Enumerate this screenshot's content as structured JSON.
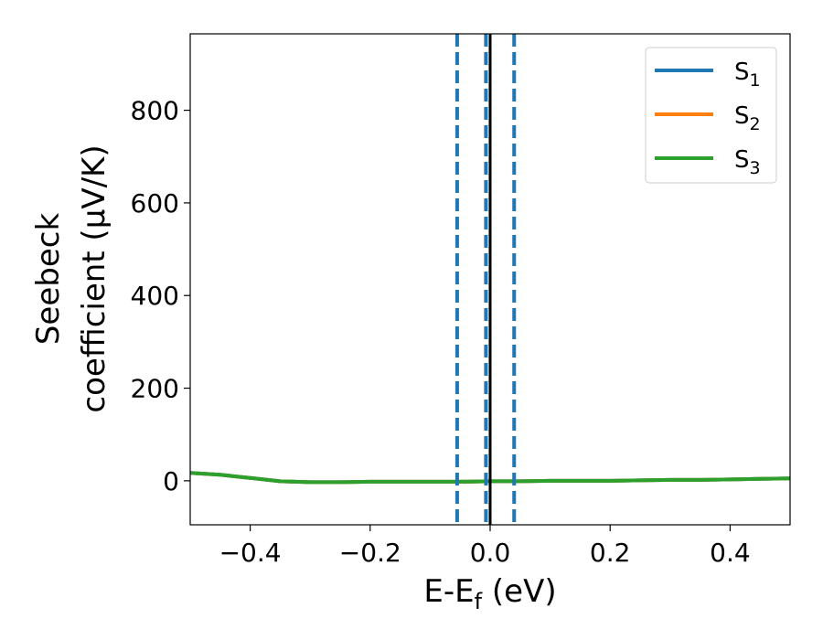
{
  "chart_data": {
    "type": "line",
    "xlabel": "E-E_f (eV)",
    "xlabel_main": "E-E",
    "xlabel_sub": "f",
    "xlabel_tail": " (eV)",
    "ylabel_line1": "Seebeck",
    "ylabel_line2": "coefficient  (μV/K)",
    "xlim": [
      -0.5,
      0.5
    ],
    "ylim": [
      -95,
      965
    ],
    "xticks": [
      -0.4,
      -0.2,
      0.0,
      0.2,
      0.4
    ],
    "xtick_labels": [
      "−0.4",
      "−0.2",
      "0.0",
      "0.2",
      "0.4"
    ],
    "yticks": [
      0,
      200,
      400,
      600,
      800
    ],
    "ytick_labels": [
      "0",
      "200",
      "400",
      "600",
      "800"
    ],
    "grid": false,
    "legend_placement": "top-right",
    "series": [
      {
        "name": "S_1",
        "label_main": "S",
        "label_sub": "1",
        "color": "#1f77b4",
        "x": [
          -0.5,
          -0.45,
          -0.4,
          -0.35,
          -0.3,
          -0.25,
          -0.2,
          -0.15,
          -0.1,
          -0.05,
          0.0,
          0.05,
          0.1,
          0.15,
          0.2,
          0.25,
          0.3,
          0.35,
          0.4,
          0.45,
          0.5
        ],
        "y": [
          17,
          13,
          6,
          -1,
          -3,
          -3,
          -2,
          -2,
          -2,
          -2,
          -1,
          -1,
          0,
          0,
          0,
          1,
          2,
          2,
          3,
          4,
          5
        ]
      },
      {
        "name": "S_2",
        "label_main": "S",
        "label_sub": "2",
        "color": "#ff7f0e",
        "x": [
          -0.5,
          -0.45,
          -0.4,
          -0.35,
          -0.3,
          -0.25,
          -0.2,
          -0.15,
          -0.1,
          -0.05,
          0.0,
          0.05,
          0.1,
          0.15,
          0.2,
          0.25,
          0.3,
          0.35,
          0.4,
          0.45,
          0.5
        ],
        "y": [
          17,
          13,
          6,
          -1,
          -3,
          -3,
          -2,
          -2,
          -2,
          -2,
          -1,
          -1,
          0,
          0,
          0,
          1,
          2,
          2,
          3,
          4,
          5
        ]
      },
      {
        "name": "S_3",
        "label_main": "S",
        "label_sub": "3",
        "color": "#2ca02c",
        "x": [
          -0.5,
          -0.45,
          -0.4,
          -0.35,
          -0.3,
          -0.25,
          -0.2,
          -0.15,
          -0.1,
          -0.05,
          0.0,
          0.05,
          0.1,
          0.15,
          0.2,
          0.25,
          0.3,
          0.35,
          0.4,
          0.45,
          0.5
        ],
        "y": [
          17,
          13,
          6,
          -1,
          -3,
          -3,
          -2,
          -2,
          -2,
          -2,
          -1,
          -1,
          0,
          0,
          0,
          1,
          2,
          2,
          3,
          4,
          5
        ]
      }
    ],
    "vertical_lines": [
      {
        "x": 0.0,
        "style": "solid",
        "color": "#000000"
      },
      {
        "x": -0.055,
        "style": "dashed",
        "color": "#1f77b4"
      },
      {
        "x": -0.007,
        "style": "dashed",
        "color": "#1f77b4"
      },
      {
        "x": 0.04,
        "style": "dashed",
        "color": "#1f77b4"
      }
    ]
  }
}
